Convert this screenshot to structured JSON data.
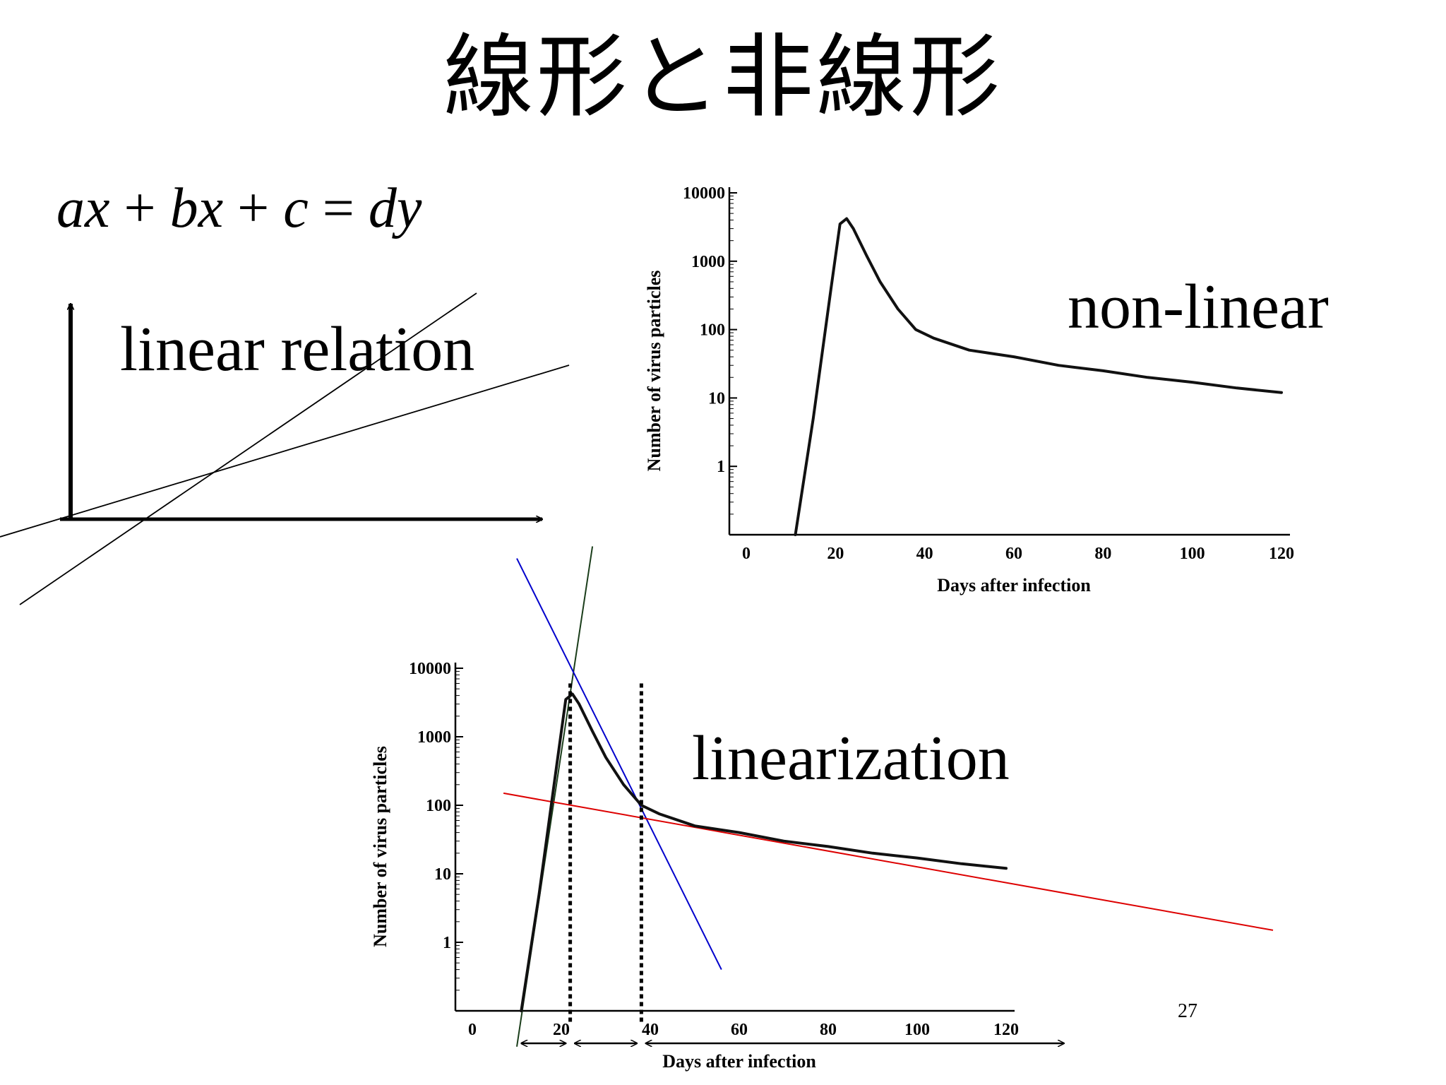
{
  "slide": {
    "title": "線形と非線形",
    "page_number": "27"
  },
  "equation": {
    "a": "ax",
    "plus1": "+",
    "b": "bx",
    "plus2": "+",
    "c": "c",
    "eq": "=",
    "d": "dy"
  },
  "labels": {
    "linear": "linear relation",
    "nonlinear": "non-linear",
    "linearization": "linearization"
  },
  "chart_data": [
    {
      "type": "line",
      "title": "",
      "xlabel": "Days after infection",
      "ylabel": "Number of virus particles",
      "xlim": [
        0,
        120
      ],
      "ylim": [
        0.1,
        10000
      ],
      "yscale": "log",
      "x_ticks": [
        "0",
        "20",
        "40",
        "60",
        "80",
        "100",
        "120"
      ],
      "y_ticks": [
        "1",
        "10",
        "100",
        "1000",
        "10000"
      ],
      "series": [
        {
          "x": [
            11,
            15,
            19,
            21,
            22.5,
            24,
            27,
            30,
            34,
            38,
            42,
            50,
            60,
            70,
            80,
            90,
            100,
            110,
            120
          ],
          "y": [
            0.1,
            5,
            400,
            3500,
            4200,
            3000,
            1200,
            500,
            200,
            100,
            75,
            50,
            40,
            30,
            25,
            20,
            17,
            14,
            12
          ]
        }
      ]
    },
    {
      "type": "line",
      "title": "",
      "xlabel": "Days after infection",
      "ylabel": "Number of virus particles",
      "xlim": [
        0,
        120
      ],
      "ylim": [
        0.1,
        10000
      ],
      "yscale": "log",
      "x_ticks": [
        "0",
        "20",
        "40",
        "60",
        "80",
        "100",
        "120"
      ],
      "y_ticks": [
        "1",
        "10",
        "100",
        "1000",
        "10000"
      ],
      "series": [
        {
          "x": [
            11,
            15,
            19,
            21,
            22.5,
            24,
            27,
            30,
            34,
            38,
            42,
            50,
            60,
            70,
            80,
            90,
            100,
            110,
            120
          ],
          "y": [
            0.1,
            5,
            400,
            3500,
            4200,
            3000,
            1200,
            500,
            200,
            100,
            75,
            50,
            40,
            30,
            25,
            20,
            17,
            14,
            12
          ]
        }
      ],
      "annotations": {
        "dotted_verticals_x": [
          22,
          38
        ],
        "arrow_segments_x": [
          [
            11,
            21
          ],
          [
            23,
            37
          ],
          [
            39,
            133
          ]
        ],
        "tangent_lines": [
          {
            "color": "#1a3d1a",
            "x": [
              10,
              27
            ],
            "y": [
              0.03,
              600000
            ]
          },
          {
            "color": "#0000cc",
            "x": [
              10,
              56
            ],
            "y": [
              400000,
              0.4
            ]
          },
          {
            "color": "#dd0000",
            "x": [
              7,
              180
            ],
            "y": [
              150,
              1.5
            ]
          }
        ]
      }
    }
  ]
}
